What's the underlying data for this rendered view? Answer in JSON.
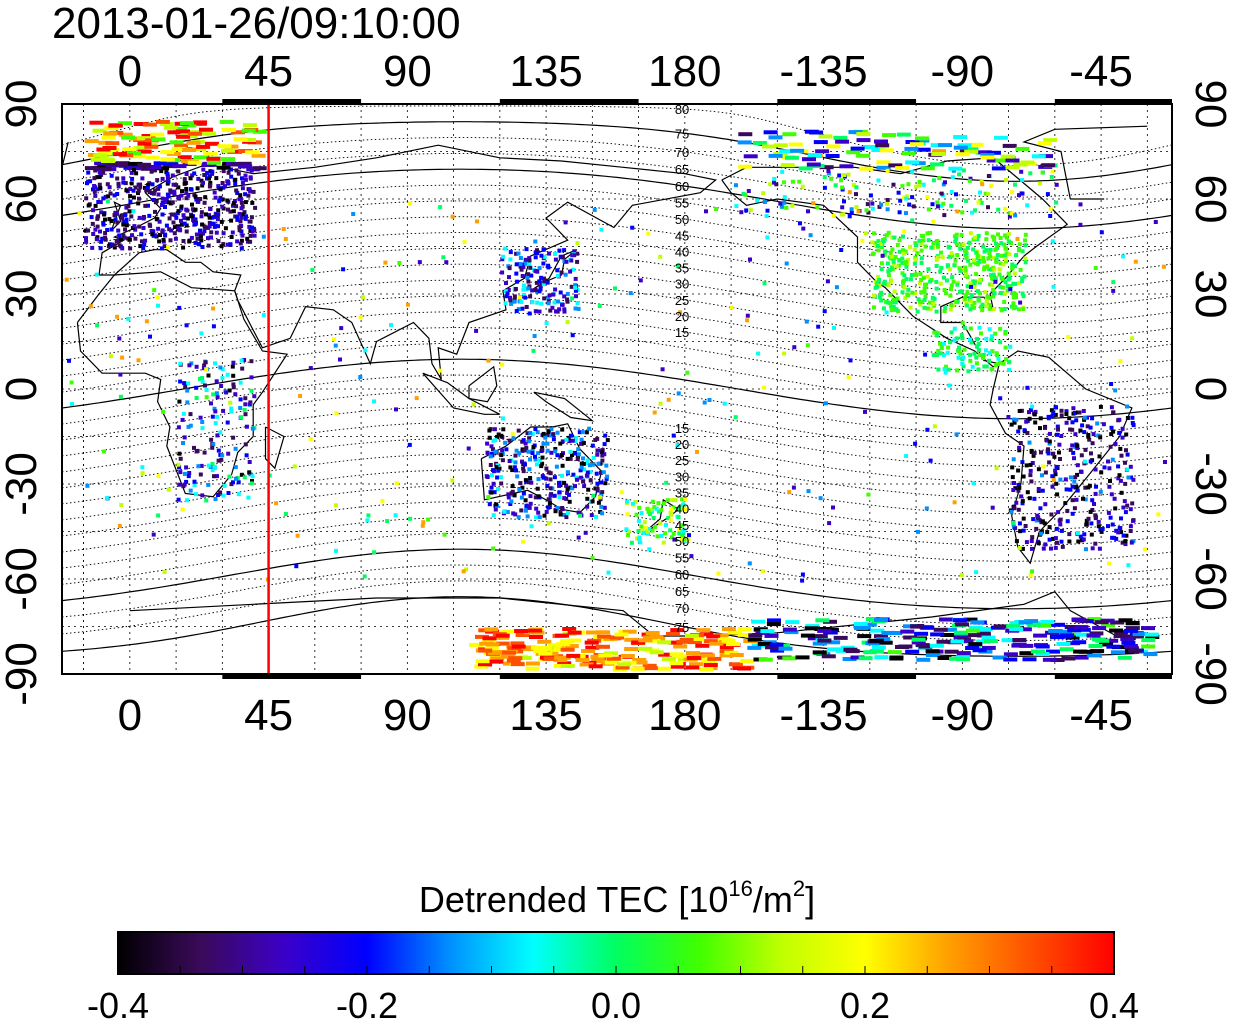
{
  "timestamp": "2013-01-26/09:10:00",
  "lon_labels": [
    "0",
    "45",
    "90",
    "135",
    "180",
    "-135",
    "-90",
    "-45"
  ],
  "lat_labels_left": [
    "90",
    "60",
    "30",
    "0",
    "-30",
    "-60",
    "-90"
  ],
  "lat_labels_right": [
    "90",
    "60",
    "30",
    "0",
    "-30",
    "-60",
    "-90"
  ],
  "contour_labels_north": [
    "80",
    "75",
    "70",
    "65",
    "60",
    "55",
    "50",
    "45",
    "40",
    "35",
    "30",
    "25",
    "20",
    "15"
  ],
  "contour_labels_south": [
    "15",
    "20",
    "25",
    "30",
    "35",
    "40",
    "45",
    "50",
    "55",
    "60",
    "65",
    "70",
    "75"
  ],
  "meridian_marker": {
    "longitude": 45,
    "color": "#ff0000"
  },
  "colorbar": {
    "title_prefix": "Detrended TEC  [10",
    "title_sup1": "16",
    "title_mid": "/m",
    "title_sup2": "2",
    "title_suffix": "]",
    "min": -0.4,
    "max": 0.4,
    "tick_labels": [
      "-0.4",
      "-0.2",
      "0.0",
      "0.2",
      "0.4"
    ],
    "colors": [
      "#000000",
      "#3a0a5a",
      "#3b00c8",
      "#0000ff",
      "#0090ff",
      "#00ffff",
      "#00ff60",
      "#40ff00",
      "#c0ff00",
      "#ffff00",
      "#ffa000",
      "#ff5000",
      "#ff0000"
    ]
  },
  "map": {
    "lon_range": [
      -22,
      338
    ],
    "lat_range": [
      -90,
      90
    ],
    "grid_lon_step": 15,
    "grid_lat_step": 15
  }
}
